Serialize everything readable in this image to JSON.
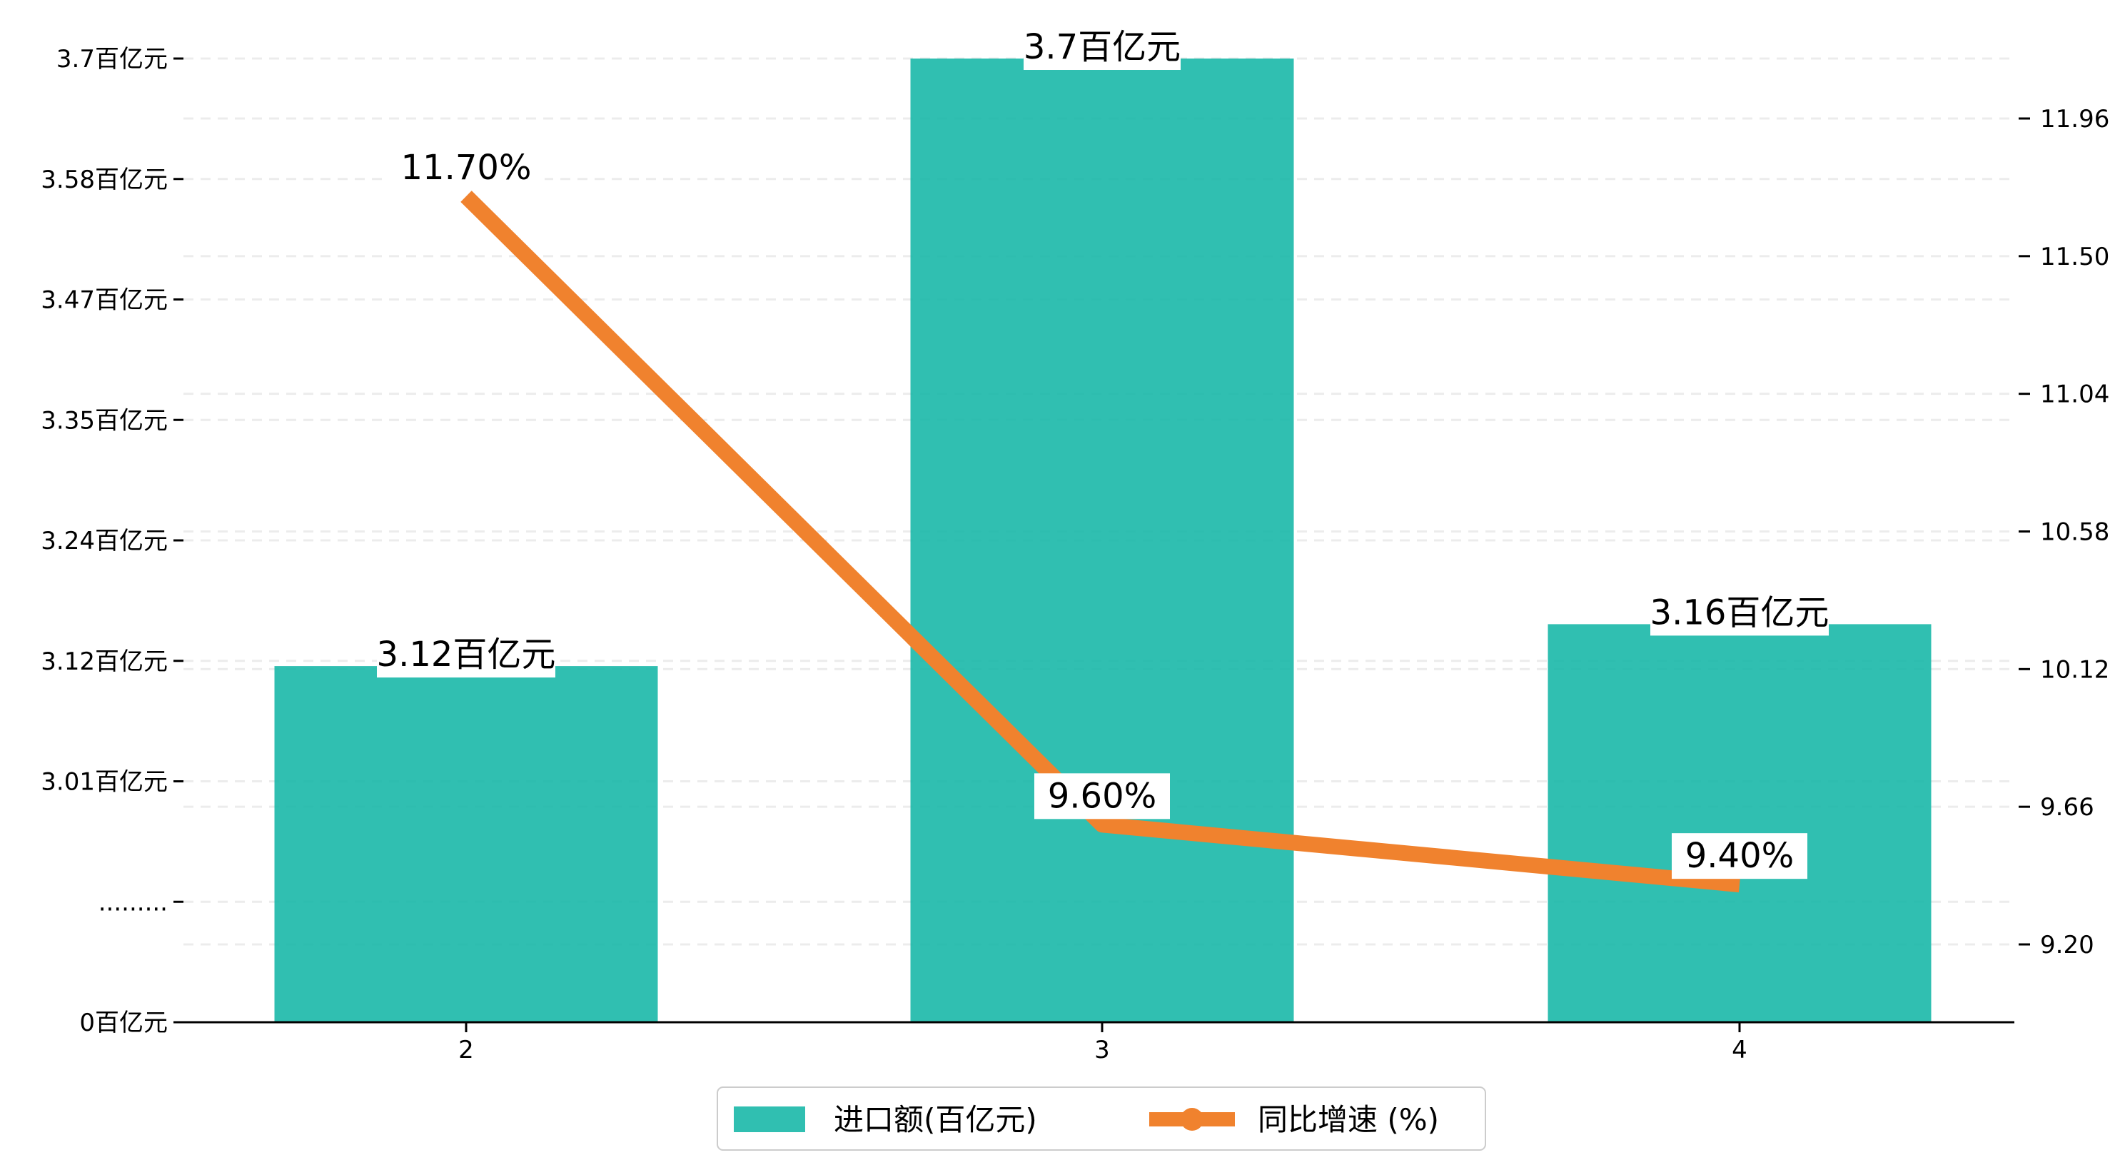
{
  "chart_data": {
    "type": "bar+line",
    "categories": [
      "2",
      "3",
      "4"
    ],
    "series": [
      {
        "name": "进口额(百亿元)",
        "type": "bar",
        "axis": "left",
        "values": [
          3.12,
          3.7,
          3.16
        ],
        "labels": [
          "3.12百亿元",
          "3.7百亿元",
          "3.16百亿元"
        ],
        "color": "#1ab8a8"
      },
      {
        "name": "同比增速 (%)",
        "type": "line",
        "axis": "right",
        "values": [
          11.7,
          9.6,
          9.4
        ],
        "labels": [
          "11.70%",
          "9.60%",
          "9.40%"
        ],
        "color": "#f0822e"
      }
    ],
    "left_axis": {
      "ticks": [
        {
          "value": 3.7,
          "label": "3.7百亿元"
        },
        {
          "value": 3.58,
          "label": "3.58百亿元"
        },
        {
          "value": 3.47,
          "label": "3.47百亿元"
        },
        {
          "value": 3.35,
          "label": "3.35百亿元"
        },
        {
          "value": 3.24,
          "label": "3.24百亿元"
        },
        {
          "value": 3.12,
          "label": "3.12百亿元"
        },
        {
          "value": 3.01,
          "label": "3.01百亿元"
        },
        {
          "value": null,
          "label": "........."
        },
        {
          "value": 0,
          "label": "0百亿元"
        }
      ],
      "broken": true
    },
    "right_axis": {
      "ticks": [
        "11.96",
        "11.50",
        "11.04",
        "10.58",
        "10.12",
        "9.66",
        "9.20"
      ],
      "ylim": [
        8.96,
        12.15
      ]
    },
    "grid": "horizontal dashed",
    "legend": {
      "placement": "bottom-center",
      "entries": [
        "进口额(百亿元)",
        "同比增速 (%)"
      ]
    },
    "title": "",
    "xlabel": "",
    "ylabel": ""
  }
}
